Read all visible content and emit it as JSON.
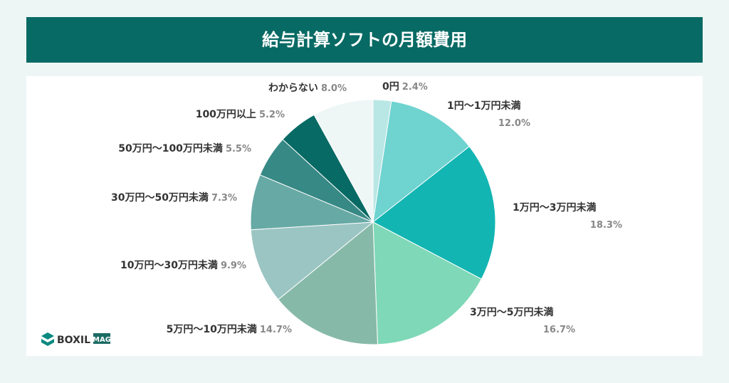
{
  "chart_data": {
    "type": "pie",
    "title": "給与計算ソフトの月額費用",
    "categories": [
      "0円",
      "1円〜1万円未満",
      "1万円〜3万円未満",
      "3万円〜5万円未満",
      "5万円〜10万円未満",
      "10万円〜30万円未満",
      "30万円〜50万円未満",
      "50万円〜100万円未満",
      "100万円以上",
      "わからない"
    ],
    "values": [
      2.4,
      12.0,
      18.3,
      16.7,
      14.7,
      9.9,
      7.3,
      5.5,
      5.2,
      8.0
    ],
    "value_labels": [
      "2.4%",
      "12.0%",
      "18.3%",
      "16.7%",
      "14.7%",
      "9.9%",
      "7.3%",
      "5.5%",
      "5.2%",
      "8.0%"
    ],
    "colors": [
      "#b9e7e5",
      "#6fd3d0",
      "#13b5b2",
      "#7fd8b7",
      "#87b9a9",
      "#9bc5c3",
      "#67a9a5",
      "#378985",
      "#086a64",
      "#eef6f6"
    ]
  },
  "logo": {
    "name": "BOXIL",
    "badge": "MAG"
  }
}
